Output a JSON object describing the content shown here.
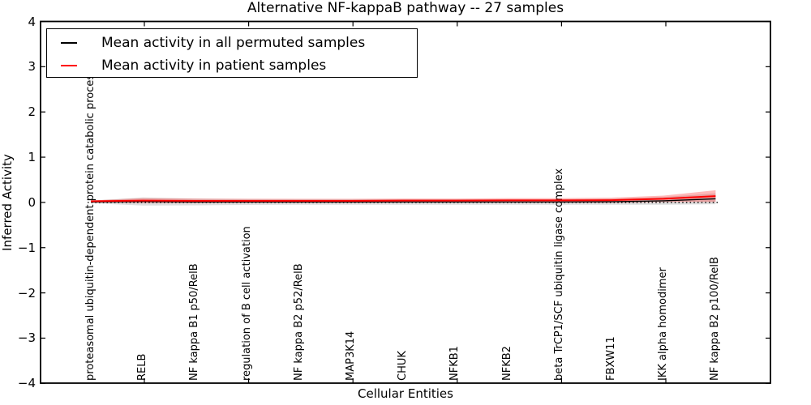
{
  "window": {
    "title": "Alternative NF-kappaB pathway -- 27 samples"
  },
  "legend": {
    "items": [
      {
        "label": "Mean activity in all permuted samples",
        "color": "#000000"
      },
      {
        "label": "Mean activity in patient samples",
        "color": "#ff0000"
      }
    ]
  },
  "chart_data": {
    "type": "line",
    "title": "Alternative NF-kappaB pathway -- 27 samples",
    "xlabel": "Cellular Entities",
    "ylabel": "Inferred Activity",
    "ylim": [
      -4,
      4
    ],
    "yticks": [
      -4,
      -3,
      -2,
      -1,
      0,
      1,
      2,
      3,
      4
    ],
    "ytick_labels": [
      "−4",
      "−3",
      "−2",
      "−1",
      "0",
      "1",
      "2",
      "3",
      "4"
    ],
    "grid": false,
    "legend_position": "upper left",
    "zero_reference_line": {
      "y": 0,
      "style": "dotted",
      "color": "#000000"
    },
    "categories": [
      "proteasomal ubiquitin-dependent protein catabolic process",
      "RELB",
      "NF kappa B1 p50/RelB",
      "regulation of B cell activation",
      "NF kappa B2 p52/RelB",
      "MAP3K14",
      "CHUK",
      "NFKB1",
      "NFKB2",
      "beta TrCP1/SCF ubiquitin ligase complex",
      "FBXW11",
      "IKK alpha homodimer",
      "NF kappa B2 p100/RelB"
    ],
    "series": [
      {
        "name": "Mean activity in all permuted samples",
        "color": "#000000",
        "band_color": "#000000",
        "band_opacity": 0.13,
        "values": [
          0.01,
          0.02,
          0.01,
          0.01,
          0.01,
          0.01,
          0.01,
          0.01,
          0.01,
          0.01,
          0.015,
          0.035,
          0.08
        ],
        "std": [
          0.03,
          0.09,
          0.075,
          0.065,
          0.06,
          0.06,
          0.06,
          0.06,
          0.06,
          0.06,
          0.065,
          0.085,
          0.12
        ]
      },
      {
        "name": "Mean activity in patient samples",
        "color": "#ff0000",
        "band_color": "#ff0000",
        "band_opacity": 0.27,
        "values": [
          0.025,
          0.04,
          0.035,
          0.035,
          0.035,
          0.035,
          0.04,
          0.04,
          0.045,
          0.045,
          0.05,
          0.08,
          0.14
        ],
        "std": [
          0.02,
          0.055,
          0.05,
          0.045,
          0.045,
          0.045,
          0.045,
          0.045,
          0.05,
          0.05,
          0.055,
          0.07,
          0.13
        ]
      }
    ]
  }
}
